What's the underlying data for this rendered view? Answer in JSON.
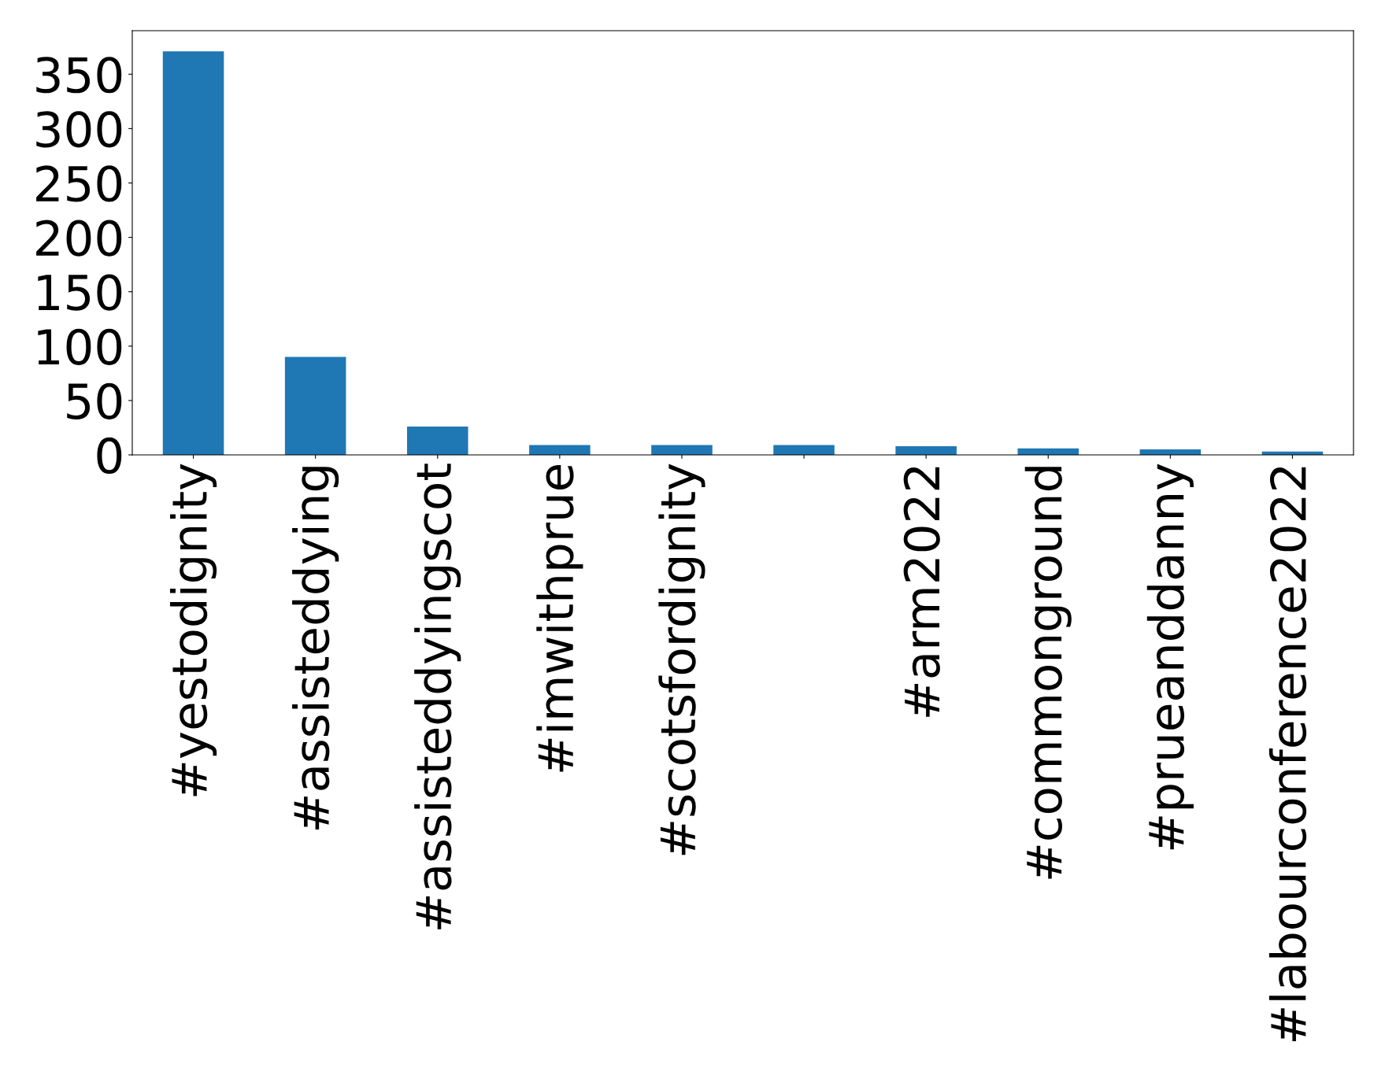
{
  "chart_data": {
    "type": "bar",
    "categories": [
      "#yestodignity",
      "#assisteddying",
      "#assisteddyingscot",
      "#imwithprue",
      "#scotsfordignity",
      null,
      "#arm2022",
      "#commonground",
      "#prueanddanny",
      "#labourconference2022"
    ],
    "values": [
      371,
      90,
      26,
      9,
      9,
      9,
      8,
      6,
      5,
      3
    ],
    "color": "#1f77b4",
    "ylim": [
      0,
      390
    ],
    "yticks": [
      0,
      50,
      100,
      150,
      200,
      250,
      300,
      350
    ],
    "grid": false
  }
}
